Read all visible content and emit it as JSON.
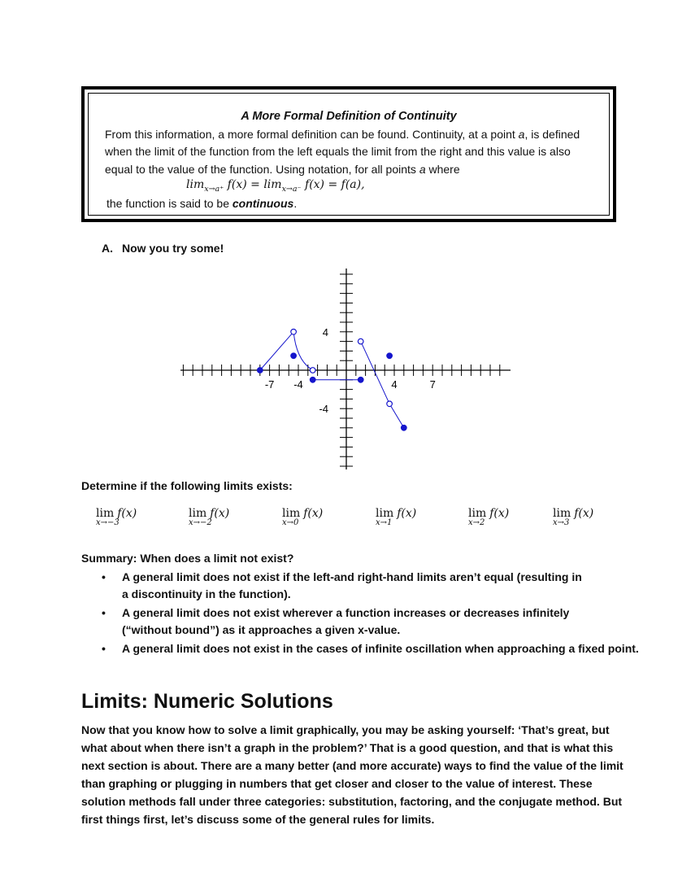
{
  "definition_box": {
    "title": "A More Formal Definition of Continuity",
    "line1_pre": "From this information, a more formal definition can be found. Continuity, at a point ",
    "line1_var": "a",
    "line1_post": ", is defined",
    "line2": "when the limit of the function from the left equals the limit from the right and this value is also",
    "line3_pre": "equal to the value of the function. Using notation, for all points ",
    "line3_var": "a",
    "line3_post": " where",
    "formula_lim": "lim",
    "formula_sub_right": "x→a⁺",
    "formula_sub_left": "x→a⁻",
    "formula_body1": " f(x) = ",
    "formula_body2": " f(x) = f(a),",
    "line5_pre": "the function is said to be ",
    "line5_emph": "continuous",
    "line5_post": "."
  },
  "section_a": {
    "letter": "A.",
    "label": "Now you try some!"
  },
  "graph": {
    "x_tick_labels": [
      "-7",
      "-4",
      "4",
      "7"
    ],
    "y_tick_labels": [
      "4",
      "-4"
    ],
    "color": "#1515cc"
  },
  "determine_prompt": "Determine if the following limits exists:",
  "limits": [
    {
      "word": "lim",
      "fx": "f(x)",
      "sub": "x→−3"
    },
    {
      "word": "lim",
      "fx": "f(x)",
      "sub": "x→−2"
    },
    {
      "word": "lim",
      "fx": "f(x)",
      "sub": "x→0"
    },
    {
      "word": "lim",
      "fx": "f(x)",
      "sub": "x→1"
    },
    {
      "word": "lim",
      "fx": "f(x)",
      "sub": "x→2"
    },
    {
      "word": "lim",
      "fx": "f(x)",
      "sub": "x→3"
    }
  ],
  "summary": {
    "title": "Summary: When does a limit not exist?",
    "bullets": [
      [
        "A general limit does not exist if the left-and right-hand limits aren’t equal (resulting in",
        "a discontinuity in the function)."
      ],
      [
        "A general limit does not exist wherever a function increases or decreases infinitely",
        "(“without bound”) as it approaches a given x-value."
      ],
      [
        "A general limit does not exist in the cases of infinite oscillation when approaching a fixed point."
      ]
    ]
  },
  "numeric_section": {
    "heading": "Limits: Numeric Solutions",
    "lines": [
      "Now that you know how to solve a limit graphically, you may be asking yourself: ‘That’s great, but",
      "what about when there isn’t a graph in the problem?’ That is a good question, and that is what this",
      "next section is about. There are a many better (and more accurate) ways to find the value of the limit",
      "than graphing or plugging in numbers that get closer and closer to the value of interest. These",
      "solution methods fall under three categories: substitution, factoring, and the conjugate method. But",
      "first things first, let’s discuss some of the general rules for limits."
    ]
  }
}
